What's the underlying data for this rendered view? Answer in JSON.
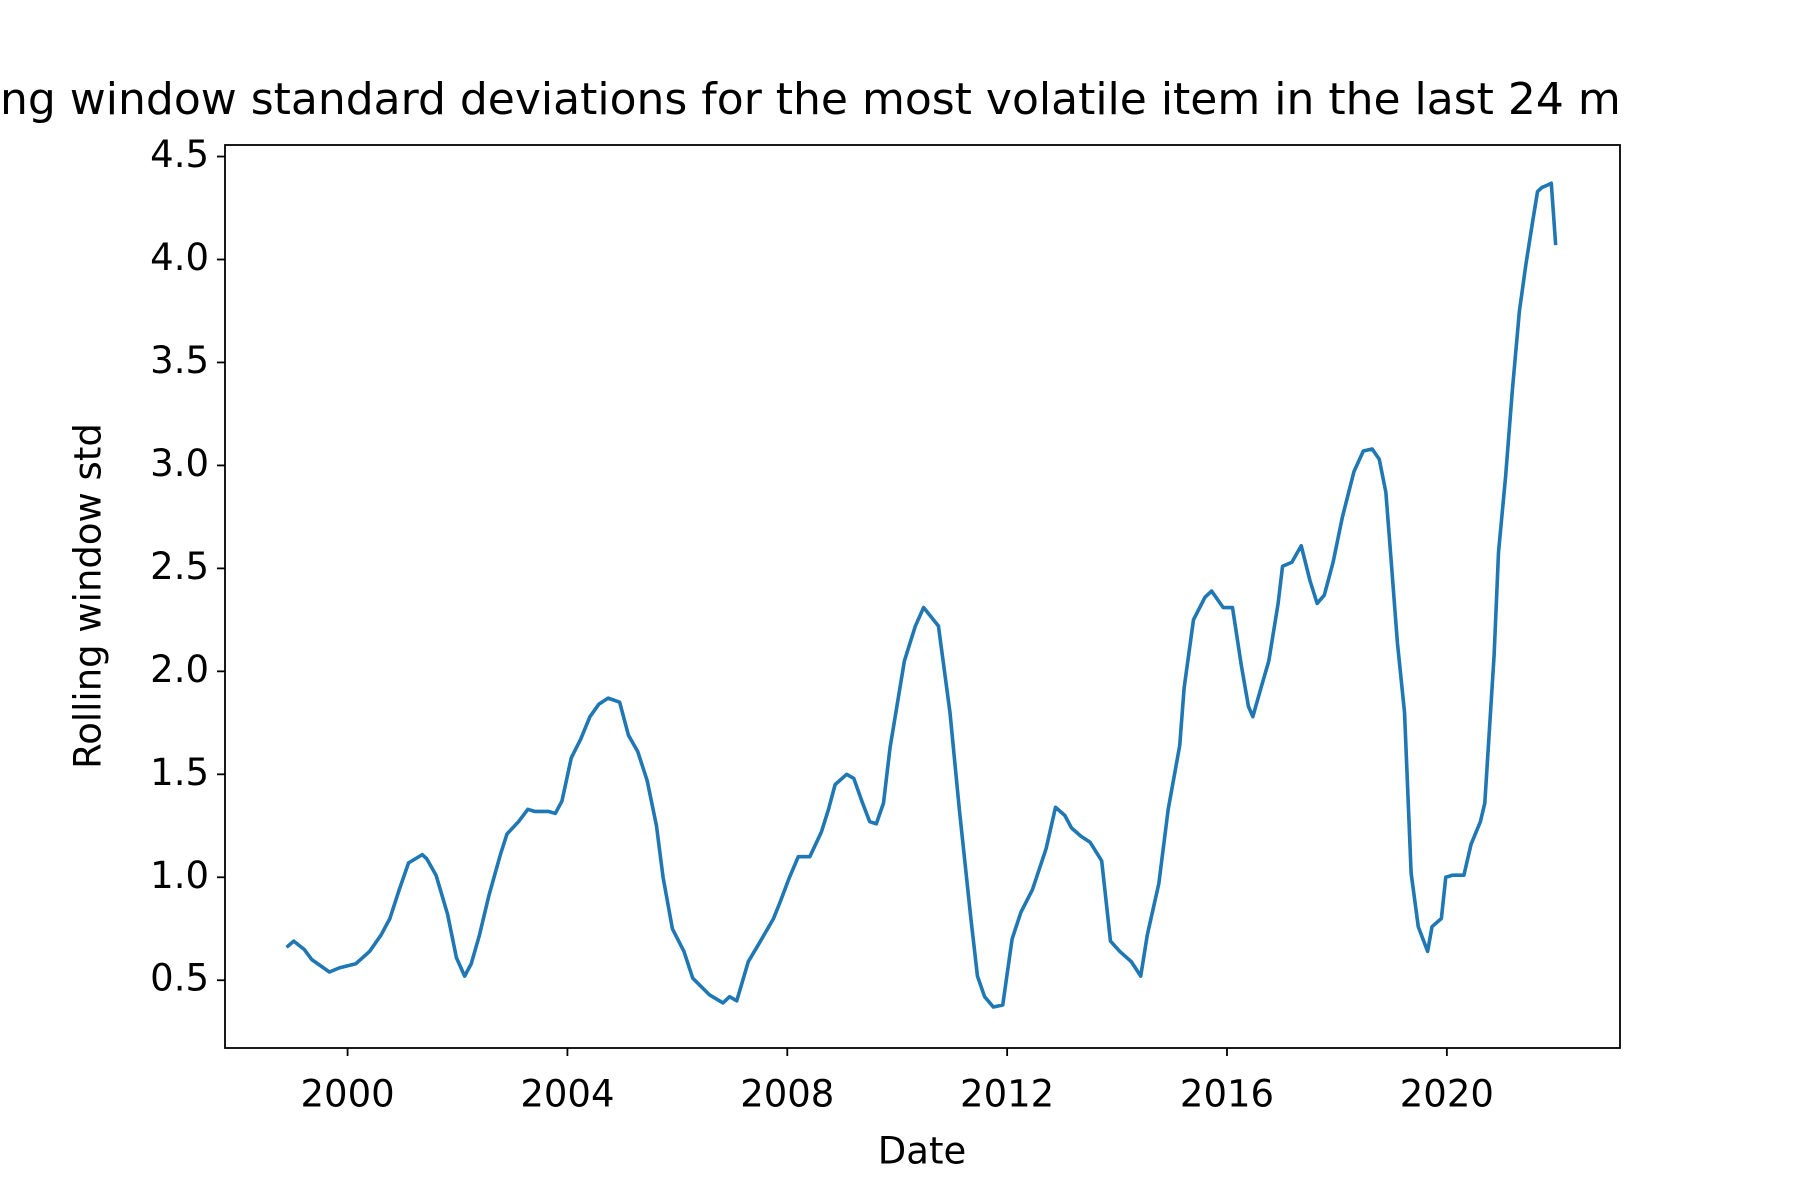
{
  "chart_data": {
    "type": "line",
    "title": "ng window standard deviations for the most volatile item in the last 24 m",
    "x_label": "Date",
    "y_label": "Rolling window std",
    "x": [
      1998.89,
      1999.02,
      1999.21,
      1999.35,
      1999.67,
      1999.85,
      2000.15,
      2000.4,
      2000.61,
      2000.77,
      2000.94,
      2001.11,
      2001.36,
      2001.44,
      2001.61,
      2001.82,
      2001.98,
      2002.13,
      2002.25,
      2002.4,
      2002.57,
      2002.78,
      2002.9,
      2003.11,
      2003.28,
      2003.4,
      2003.65,
      2003.78,
      2003.9,
      2004.07,
      2004.24,
      2004.41,
      2004.57,
      2004.74,
      2004.95,
      2005.11,
      2005.28,
      2005.45,
      2005.62,
      2005.74,
      2005.91,
      2006.12,
      2006.28,
      2006.58,
      2006.83,
      2006.95,
      2007.08,
      2007.29,
      2007.49,
      2007.75,
      2007.87,
      2008.04,
      2008.2,
      2008.41,
      2008.62,
      2008.75,
      2008.87,
      2009.08,
      2009.21,
      2009.37,
      2009.5,
      2009.62,
      2009.75,
      2009.87,
      2010.13,
      2010.33,
      2010.48,
      2010.75,
      2010.96,
      2011.13,
      2011.34,
      2011.46,
      2011.59,
      2011.75,
      2011.92,
      2012.09,
      2012.25,
      2012.46,
      2012.71,
      2012.88,
      2013.05,
      2013.17,
      2013.34,
      2013.51,
      2013.72,
      2013.88,
      2014.05,
      2014.26,
      2014.43,
      2014.55,
      2014.76,
      2014.93,
      2015.14,
      2015.22,
      2015.39,
      2015.6,
      2015.72,
      2015.93,
      2016.1,
      2016.26,
      2016.39,
      2016.47,
      2016.64,
      2016.76,
      2016.93,
      2017.01,
      2017.18,
      2017.35,
      2017.51,
      2017.64,
      2017.77,
      2017.93,
      2018.1,
      2018.31,
      2018.48,
      2018.64,
      2018.77,
      2018.89,
      2018.98,
      2019.1,
      2019.23,
      2019.35,
      2019.48,
      2019.65,
      2019.73,
      2019.9,
      2019.98,
      2020.1,
      2020.31,
      2020.44,
      2020.61,
      2020.69,
      2020.86,
      2020.94,
      2021.07,
      2021.19,
      2021.32,
      2021.44,
      2021.57,
      2021.65,
      2021.73,
      2021.82,
      2021.9,
      2021.98
    ],
    "series": [
      {
        "color": "#1f77b4",
        "values": [
          0.66,
          0.69,
          0.65,
          0.6,
          0.54,
          0.56,
          0.58,
          0.64,
          0.72,
          0.8,
          0.94,
          1.07,
          1.11,
          1.09,
          1.01,
          0.82,
          0.61,
          0.52,
          0.58,
          0.72,
          0.91,
          1.11,
          1.21,
          1.27,
          1.33,
          1.32,
          1.32,
          1.31,
          1.37,
          1.58,
          1.67,
          1.78,
          1.84,
          1.87,
          1.85,
          1.69,
          1.61,
          1.47,
          1.25,
          1.0,
          0.75,
          0.64,
          0.51,
          0.43,
          0.39,
          0.42,
          0.4,
          0.59,
          0.68,
          0.8,
          0.88,
          1.0,
          1.1,
          1.1,
          1.22,
          1.33,
          1.45,
          1.5,
          1.48,
          1.36,
          1.27,
          1.26,
          1.36,
          1.63,
          2.05,
          2.22,
          2.31,
          2.22,
          1.8,
          1.33,
          0.8,
          0.52,
          0.42,
          0.37,
          0.38,
          0.7,
          0.83,
          0.94,
          1.14,
          1.34,
          1.3,
          1.24,
          1.2,
          1.17,
          1.08,
          0.69,
          0.64,
          0.59,
          0.52,
          0.72,
          0.97,
          1.33,
          1.64,
          1.92,
          2.25,
          2.36,
          2.39,
          2.31,
          2.31,
          2.03,
          1.83,
          1.78,
          1.94,
          2.05,
          2.33,
          2.51,
          2.53,
          2.61,
          2.44,
          2.33,
          2.37,
          2.53,
          2.75,
          2.97,
          3.07,
          3.08,
          3.03,
          2.87,
          2.56,
          2.14,
          1.8,
          1.02,
          0.76,
          0.64,
          0.76,
          0.8,
          1.0,
          1.01,
          1.01,
          1.16,
          1.27,
          1.36,
          2.08,
          2.58,
          2.95,
          3.36,
          3.75,
          3.98,
          4.2,
          4.33,
          4.35,
          4.36,
          4.37,
          4.07
        ]
      }
    ],
    "xlim": [
      1997.77,
      2023.15
    ],
    "xticks": [
      2000,
      2004,
      2008,
      2012,
      2016,
      2020
    ],
    "ylim": [
      0.171,
      4.556
    ],
    "yticks": [
      0.5,
      {
        "value": 1.0,
        "label": "1.0"
      },
      1.5,
      {
        "value": 2.0,
        "label": "2.0"
      },
      2.5,
      {
        "value": 3.0,
        "label": "3.0"
      },
      3.5,
      {
        "value": 4.0,
        "label": "4.0"
      },
      4.5
    ]
  }
}
